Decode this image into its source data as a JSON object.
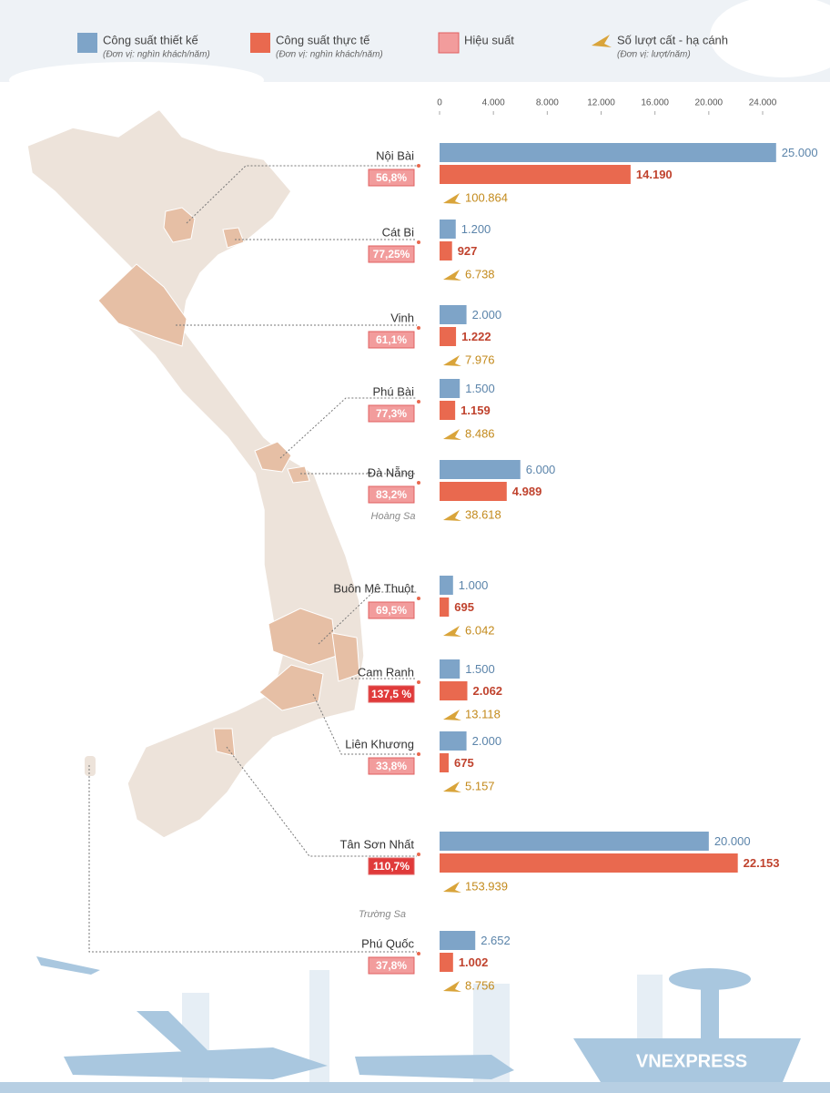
{
  "chart_data": {
    "type": "bar",
    "categories": [
      "Nội Bài",
      "Cát Bi",
      "Vinh",
      "Phú Bài",
      "Đà Nẵng",
      "Buôn Mê Thuột",
      "Cam Ranh",
      "Liên Khương",
      "Tân Sơn Nhất",
      "Phú Quốc"
    ],
    "series": [
      {
        "name": "Công suất thiết kế",
        "note": "(Đơn vị: nghìn khách/năm)",
        "color": "#7ea4c8",
        "values": [
          25000,
          1200,
          2000,
          1500,
          6000,
          1000,
          1500,
          2000,
          20000,
          2652
        ],
        "value_labels": [
          "25.000",
          "1.200",
          "2.000",
          "1.500",
          "6.000",
          "1.000",
          "1.500",
          "2.000",
          "20.000",
          "2.652"
        ]
      },
      {
        "name": "Công suất thực tế",
        "note": "(Đơn vị: nghìn khách/năm)",
        "color": "#e9694f",
        "values": [
          14190,
          927,
          1222,
          1159,
          4989,
          695,
          2062,
          675,
          22153,
          1002
        ],
        "value_labels": [
          "14.190",
          "927",
          "1.222",
          "1.159",
          "4.989",
          "695",
          "2.062",
          "675",
          "22.153",
          "1.002"
        ]
      }
    ],
    "efficiency": {
      "name": "Hiệu suất",
      "color": "#f29c9c",
      "values": [
        56.8,
        77.25,
        61.1,
        77.3,
        83.2,
        69.5,
        137.5,
        33.8,
        110.7,
        37.8
      ],
      "value_labels": [
        "56,8%",
        "77,25%",
        "61,1%",
        "77,3%",
        "83,2%",
        "69,5%",
        "137,5 %",
        "33,8%",
        "110,7%",
        "37,8%"
      ]
    },
    "flights": {
      "name": "Số lượt cất - hạ cánh",
      "note": "(Đơn vị: lượt/năm)",
      "color": "#d9a43a",
      "values": [
        100864,
        6738,
        7976,
        8486,
        38618,
        6042,
        13118,
        5157,
        153939,
        8756
      ],
      "value_labels": [
        "100.864",
        "6.738",
        "7.976",
        "8.486",
        "38.618",
        "6.042",
        "13.118",
        "5.157",
        "153.939",
        "8.756"
      ]
    },
    "xlim": [
      0,
      24000
    ],
    "xticks": [
      0,
      {
        "value": 4000,
        "label": "4.000"
      },
      {
        "value": 8000,
        "label": "8.000"
      },
      {
        "value": 12000,
        "label": "12.000"
      },
      {
        "value": 16000,
        "label": "16.000"
      },
      {
        "value": 20000,
        "label": "20.000"
      },
      {
        "value": 24000,
        "label": "24.000"
      }
    ],
    "annotations": [
      "Hoàng Sa",
      "Trường Sa"
    ],
    "logo": "VNEXPRESS"
  }
}
